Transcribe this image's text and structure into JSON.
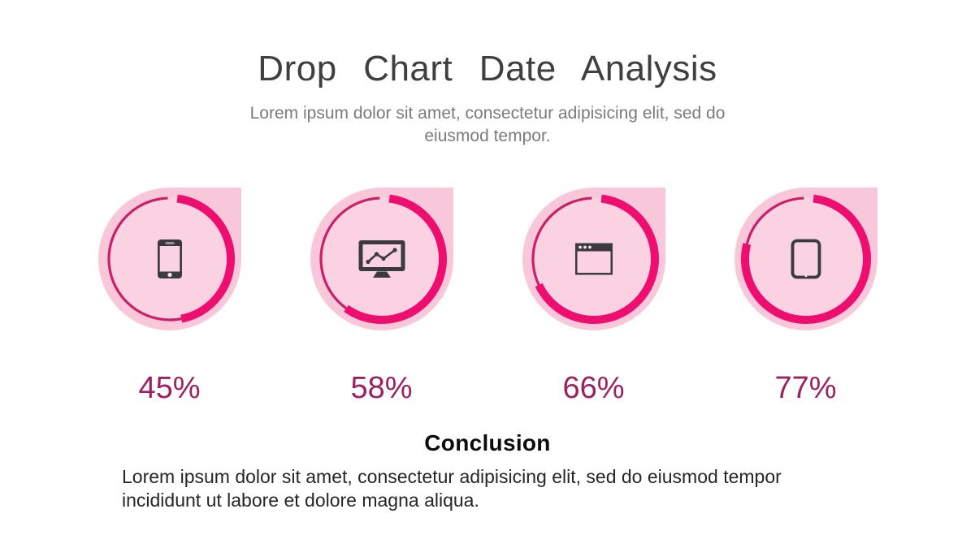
{
  "slide": {
    "title": "Drop Chart Date Analysis",
    "subtitle": "Lorem ipsum dolor sit amet, consectetur adipisicing elit, sed do eiusmod tempor.",
    "conclusion": {
      "heading": "Conclusion",
      "body": "Lorem ipsum dolor sit amet, consectetur adipisicing elit, sed do eiusmod tempor incididunt ut labore et dolore magna aliqua."
    }
  },
  "chart_data": {
    "type": "pie",
    "subtype": "progress-rings-in-drop-shapes",
    "title": "Drop Chart Date Analysis",
    "categories": [
      "smartphone",
      "desktop-monitor",
      "browser-window",
      "tablet"
    ],
    "values": [
      45,
      58,
      66,
      77
    ],
    "labels": [
      "45%",
      "58%",
      "66%",
      "77%"
    ],
    "unit": "%",
    "start_angle": "top, 7 degrees clockwise offset",
    "direction": "clockwise",
    "legend": "none",
    "icons": [
      "smartphone-icon",
      "monitor-chart-icon",
      "browser-window-icon",
      "tablet-icon"
    ]
  },
  "colors": {
    "background": "#ffffff",
    "drop-fill": "#f8c7da",
    "inner-fill": "#fad2e1",
    "ring-thin": "#c92067",
    "ring-thick": "#ee0e6f",
    "icon": "#3b3a40",
    "percent-text": "#9c2160",
    "title-text": "#3f3f3f",
    "subtitle-text": "#7b7b7b",
    "body-text": "#262626"
  }
}
